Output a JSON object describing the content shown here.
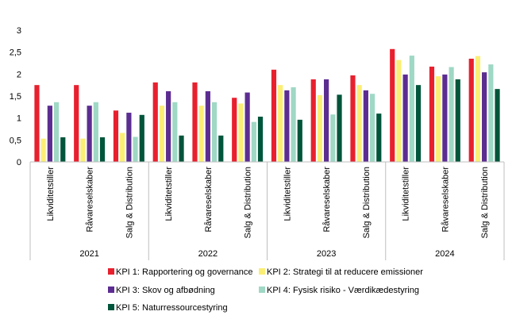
{
  "chart_data": {
    "type": "bar",
    "title": "",
    "xlabel": "",
    "ylabel": "",
    "ylim": [
      0,
      3
    ],
    "yticks": [
      "0",
      "0,5",
      "1",
      "1,5",
      "2",
      "2,5",
      "3"
    ],
    "grid": false,
    "legend_position": "bottom",
    "groups": [
      {
        "year": "2021",
        "categories": [
          "Likviditetstiller",
          "Råvareselskaber",
          "Salg & Distribution"
        ]
      },
      {
        "year": "2022",
        "categories": [
          "Likviditetstiller",
          "Råvareselskaber",
          "Salg & Distribution"
        ]
      },
      {
        "year": "2023",
        "categories": [
          "Likviditetstiller",
          "Råvareselskaber",
          "Salg & Distribution"
        ]
      },
      {
        "year": "2024",
        "categories": [
          "Likviditetstiller",
          "Råvareselskaber",
          "Salg & Distribution"
        ]
      }
    ],
    "series": [
      {
        "name": "KPI 1: Rapportering og governance",
        "color": "#e8202e",
        "values": [
          1.75,
          1.75,
          1.17,
          1.81,
          1.81,
          1.46,
          2.1,
          1.88,
          1.97,
          2.57,
          2.17,
          2.35
        ]
      },
      {
        "name": "KPI 2: Strategi til at reducere emissioner",
        "color": "#fbee75",
        "values": [
          0.53,
          0.53,
          0.66,
          1.28,
          1.28,
          1.33,
          1.75,
          1.52,
          1.75,
          2.32,
          1.95,
          2.41
        ]
      },
      {
        "name": "KPI 3: Skov og afbødning",
        "color": "#5c2d91",
        "values": [
          1.28,
          1.28,
          1.12,
          1.61,
          1.61,
          1.58,
          1.63,
          1.88,
          1.63,
          1.99,
          1.99,
          2.04
        ]
      },
      {
        "name": "KPI 4: Fysisk risiko - Værdikædestyring",
        "color": "#9fd8c5",
        "values": [
          1.36,
          1.36,
          0.57,
          1.36,
          1.36,
          0.91,
          1.7,
          1.08,
          1.55,
          2.42,
          2.16,
          2.22
        ]
      },
      {
        "name": "KPI 5: Naturressourcestyring",
        "color": "#00553b",
        "values": [
          0.56,
          0.56,
          1.07,
          0.6,
          0.6,
          1.03,
          0.96,
          1.53,
          1.1,
          1.75,
          1.88,
          1.66
        ]
      }
    ]
  }
}
